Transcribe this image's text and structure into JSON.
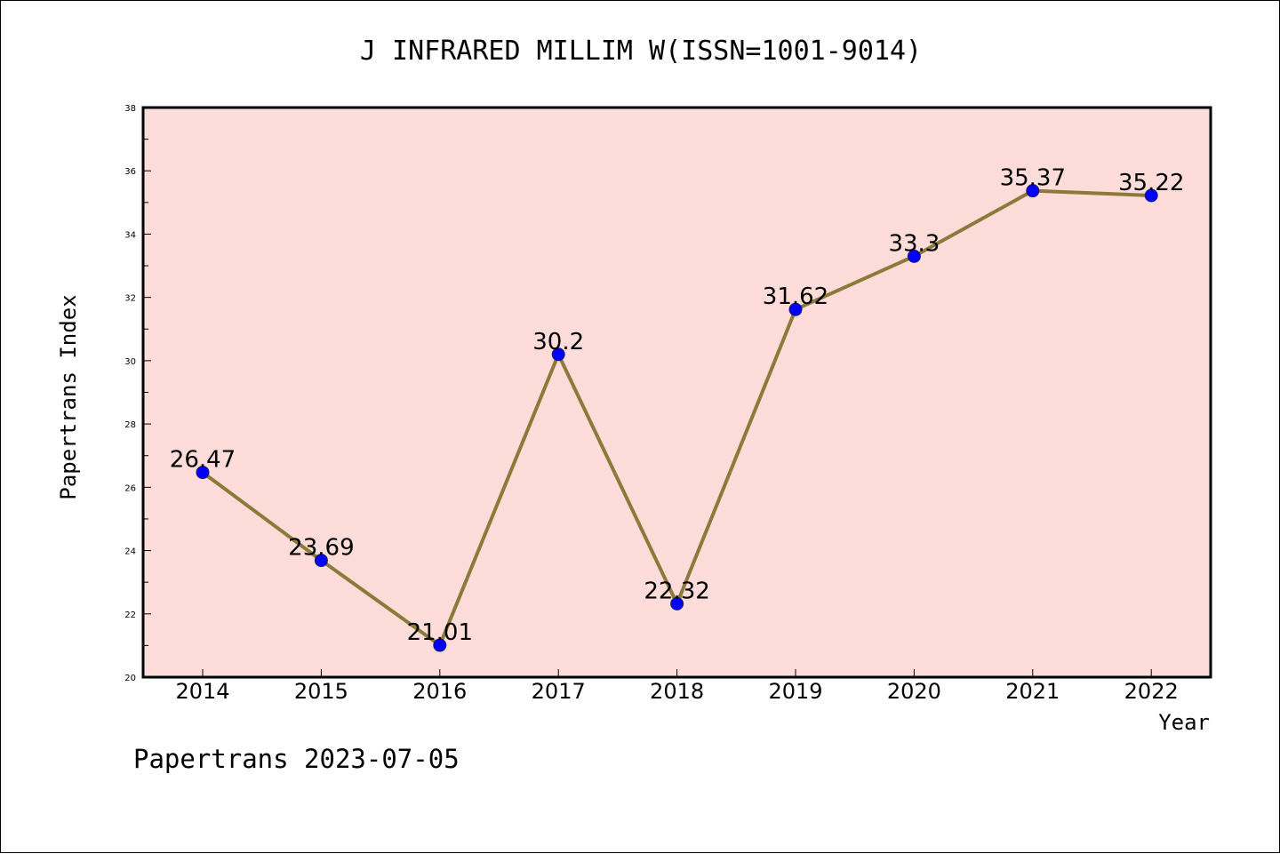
{
  "chart_data": {
    "type": "line",
    "title": "J INFRARED MILLIM W(ISSN=1001-9014)",
    "xlabel": "Year",
    "ylabel": "Papertrans Index",
    "categories": [
      "2014",
      "2015",
      "2016",
      "2017",
      "2018",
      "2019",
      "2020",
      "2021",
      "2022"
    ],
    "series": [
      {
        "values": [
          26.47,
          23.69,
          21.01,
          30.2,
          22.32,
          31.62,
          33.3,
          35.37,
          35.22
        ],
        "data_labels": [
          "26.47",
          "23.69",
          "21.01",
          "30.2",
          "22.32",
          "31.62",
          "33.3",
          "35.37",
          "35.22"
        ]
      }
    ],
    "ylim": [
      20,
      38
    ],
    "yticks": [
      "20",
      "22",
      "24",
      "26",
      "28",
      "30",
      "32",
      "34",
      "36",
      "38"
    ],
    "grid": false,
    "footer": "Papertrans 2023-07-05",
    "colors": {
      "plot_background": "#fddcda",
      "line": "#8b7a3a",
      "marker": "#0000ff",
      "axis": "#000000"
    }
  }
}
